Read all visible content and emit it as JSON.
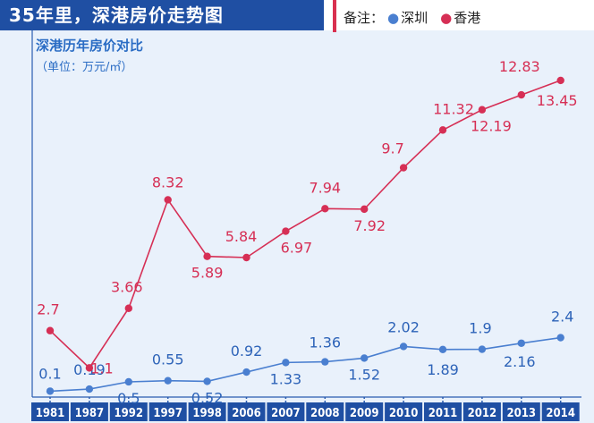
{
  "header": {
    "title": "35年里，深港房价走势图"
  },
  "legend": {
    "prefix": "备注：",
    "items": [
      {
        "name": "深圳",
        "color": "#4a7fd0"
      },
      {
        "name": "香港",
        "color": "#d62f55"
      }
    ]
  },
  "chart_data": {
    "type": "line",
    "title": "深港历年房价对比",
    "unit": "（单位：万元/㎡）",
    "categories": [
      "1981",
      "1987",
      "1992",
      "1997",
      "1998",
      "2006",
      "2007",
      "2008",
      "2009",
      "2010",
      "2011",
      "2012",
      "2013",
      "2014"
    ],
    "series": [
      {
        "name": "深圳",
        "color": "#4a7fd0",
        "values": [
          0.1,
          0.19,
          0.5,
          0.55,
          0.52,
          0.92,
          1.33,
          1.36,
          1.52,
          2.02,
          1.89,
          1.9,
          2.16,
          2.4
        ]
      },
      {
        "name": "香港",
        "color": "#d62f55",
        "values": [
          2.7,
          1.1,
          3.66,
          8.32,
          5.89,
          5.84,
          6.97,
          7.94,
          7.92,
          9.7,
          11.32,
          12.19,
          12.83,
          13.45
        ]
      }
    ],
    "grid": false,
    "legend_position": "top-right"
  }
}
